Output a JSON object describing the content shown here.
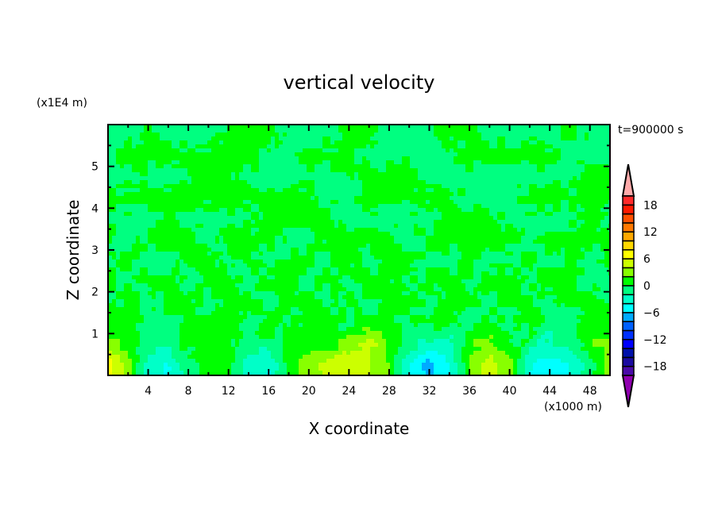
{
  "chart_data": {
    "type": "heatmap",
    "title": "vertical velocity",
    "xlabel": "X coordinate",
    "ylabel": "Z coordinate",
    "x_unit": "(x1000 m)",
    "y_unit": "(x1E4 m)",
    "annotation": "t=900000 s",
    "xlim": [
      0,
      50
    ],
    "ylim": [
      0,
      6
    ],
    "x_ticks": [
      4,
      8,
      12,
      16,
      20,
      24,
      28,
      32,
      36,
      40,
      44,
      48
    ],
    "y_ticks": [
      1,
      2,
      3,
      4,
      5
    ],
    "grid": false,
    "legend": "right colorbar",
    "x": [
      0,
      2,
      4,
      6,
      8,
      10,
      12,
      14,
      16,
      18,
      20,
      22,
      24,
      26,
      28,
      30,
      32,
      34,
      36,
      38,
      40,
      42,
      44,
      46,
      48,
      50
    ],
    "z": [
      0.25,
      0.75,
      1.25,
      1.75,
      2.25,
      2.75,
      3.25,
      3.75,
      4.25,
      4.75,
      5.25,
      5.75
    ],
    "values": [
      [
        7,
        3,
        -3,
        -4,
        -1,
        1,
        1,
        -3,
        -4,
        1,
        3,
        5,
        6,
        4,
        2,
        -4,
        -7,
        -4,
        2,
        5,
        3,
        -4,
        -5,
        -4,
        -1,
        3
      ],
      [
        3,
        1,
        -1,
        -1,
        1,
        1,
        1,
        -1,
        -1,
        1,
        1,
        1,
        3,
        5,
        1,
        -1,
        -3,
        -3,
        1,
        3,
        1,
        -1,
        -3,
        -1,
        1,
        3
      ],
      [
        1,
        1,
        -1,
        -1,
        1,
        1,
        1,
        -1,
        1,
        -1,
        1,
        1,
        -1,
        1,
        1,
        -1,
        1,
        1,
        -1,
        1,
        -1,
        1,
        -1,
        -1,
        1,
        1
      ],
      [
        -1,
        1,
        -1,
        1,
        1,
        -1,
        1,
        1,
        -1,
        1,
        1,
        -1,
        1,
        -1,
        1,
        1,
        -1,
        1,
        1,
        -1,
        1,
        1,
        -1,
        1,
        1,
        -1
      ],
      [
        1,
        -1,
        1,
        1,
        -1,
        1,
        1,
        -1,
        1,
        1,
        -1,
        1,
        -1,
        1,
        1,
        -1,
        1,
        1,
        -1,
        1,
        1,
        -1,
        1,
        1,
        -1,
        -1
      ],
      [
        -1,
        1,
        -1,
        -1,
        1,
        1,
        -1,
        1,
        -1,
        1,
        1,
        -1,
        1,
        -1,
        1,
        1,
        -1,
        -1,
        1,
        -1,
        -1,
        1,
        -1,
        1,
        -1,
        1
      ],
      [
        1,
        -1,
        1,
        1,
        1,
        -1,
        1,
        1,
        1,
        -1,
        -1,
        1,
        1,
        1,
        1,
        -1,
        1,
        1,
        1,
        1,
        1,
        -1,
        1,
        1,
        1,
        1
      ],
      [
        -1,
        -1,
        -1,
        1,
        -1,
        -1,
        -1,
        -1,
        1,
        1,
        1,
        1,
        -1,
        -1,
        -1,
        -1,
        -1,
        1,
        1,
        1,
        -1,
        -1,
        -1,
        -1,
        1,
        -1
      ],
      [
        1,
        1,
        1,
        1,
        1,
        1,
        1,
        1,
        1,
        1,
        1,
        -1,
        -1,
        1,
        1,
        1,
        1,
        1,
        -1,
        -1,
        -1,
        1,
        1,
        1,
        1,
        1
      ],
      [
        -1,
        -1,
        -1,
        -1,
        -1,
        1,
        1,
        -1,
        -1,
        -1,
        -1,
        -1,
        -1,
        1,
        1,
        1,
        -1,
        -1,
        -1,
        -1,
        -1,
        -1,
        -1,
        -1,
        1,
        1
      ],
      [
        -1,
        1,
        1,
        1,
        1,
        1,
        1,
        1,
        -1,
        -1,
        1,
        1,
        1,
        -1,
        -1,
        -1,
        -1,
        -1,
        1,
        1,
        1,
        1,
        1,
        -1,
        -1,
        -1
      ],
      [
        -1,
        -1,
        1,
        -1,
        -1,
        -1,
        1,
        1,
        1,
        -1,
        -1,
        -1,
        1,
        1,
        -1,
        -1,
        -1,
        1,
        1,
        -1,
        -1,
        -1,
        -1,
        1,
        -1,
        -1
      ]
    ],
    "colorbar": {
      "levels": [
        -20,
        -18,
        -16,
        -14,
        -12,
        -10,
        -8,
        -6,
        -4,
        -2,
        0,
        2,
        4,
        6,
        8,
        10,
        12,
        14,
        16,
        18,
        20
      ],
      "tick_labels": [
        "18",
        "12",
        "6",
        "0",
        "-6",
        "-12",
        "-18"
      ],
      "tick_values": [
        18,
        12,
        6,
        0,
        -6,
        -12,
        -18
      ],
      "colors": [
        "#4a0aa8",
        "#1a0aa0",
        "#0010aa",
        "#0000ff",
        "#0030ff",
        "#0060ff",
        "#00aaff",
        "#00ffff",
        "#00ffc8",
        "#00ff80",
        "#00ff00",
        "#88ff00",
        "#ccff00",
        "#ffff00",
        "#ffd800",
        "#ffa800",
        "#ff7800",
        "#ff5000",
        "#ff1a00",
        "#ff2a2a"
      ],
      "over_color": "#ffaaaa",
      "under_color": "#9000b0"
    }
  }
}
